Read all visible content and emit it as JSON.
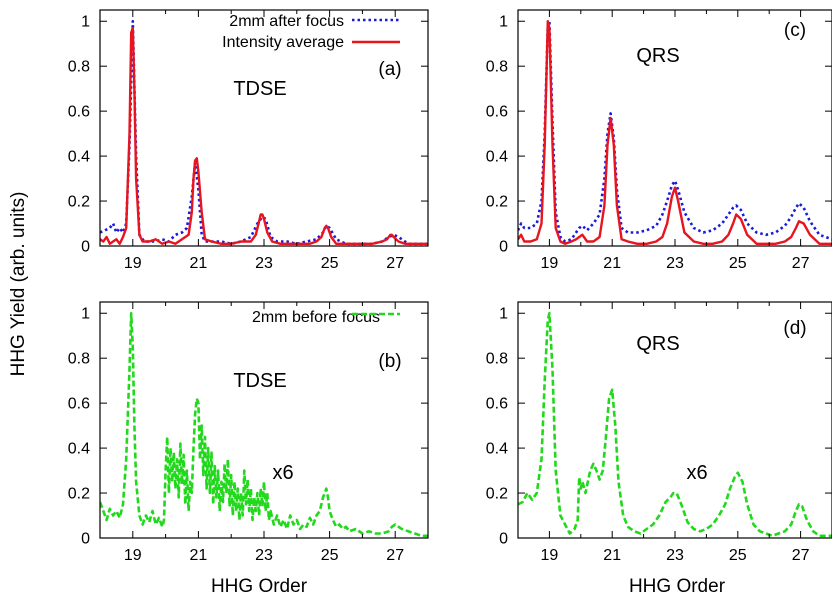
{
  "ylabel": "HHG Yield (arb. units)",
  "xlabel": "HHG Order",
  "colors": {
    "blue": "#1a1adb",
    "red": "#e8141e",
    "green": "#22d81c",
    "axis": "#000000"
  },
  "chart_data": [
    {
      "id": "a",
      "type": "line",
      "panel_label": "(a)",
      "method_label": "TDSE",
      "scale_note": "",
      "xlim": [
        18,
        28
      ],
      "ylim": [
        0,
        1.05
      ],
      "xticks": [
        19,
        21,
        23,
        25,
        27
      ],
      "yticks": [
        0,
        0.2,
        0.4,
        0.6,
        0.8,
        1
      ],
      "ytick_labels": [
        "0",
        "0.2",
        "0.4",
        "0.6",
        "0.8",
        "1"
      ],
      "series": [
        {
          "name": "2mm after focus",
          "style": "dotted",
          "color": "#1a1adb",
          "x": [
            18.0,
            18.15,
            18.3,
            18.4,
            18.5,
            18.6,
            18.7,
            18.8,
            18.9,
            19.0,
            19.1,
            19.2,
            19.35,
            19.5,
            19.7,
            19.9,
            20.1,
            20.3,
            20.5,
            20.65,
            20.8,
            20.9,
            21.0,
            21.1,
            21.2,
            21.4,
            21.7,
            22.0,
            22.3,
            22.6,
            22.8,
            22.95,
            23.05,
            23.2,
            23.4,
            23.7,
            24.0,
            24.3,
            24.6,
            24.8,
            24.9,
            25.0,
            25.2,
            25.5,
            25.9,
            26.3,
            26.6,
            26.8,
            26.95,
            27.1,
            27.4,
            27.7,
            28.0
          ],
          "y": [
            0.06,
            0.07,
            0.08,
            0.1,
            0.06,
            0.08,
            0.06,
            0.1,
            0.45,
            1.0,
            0.4,
            0.05,
            0.02,
            0.02,
            0.02,
            0.03,
            0.02,
            0.05,
            0.06,
            0.08,
            0.22,
            0.37,
            0.25,
            0.05,
            0.02,
            0.02,
            0.02,
            0.01,
            0.02,
            0.04,
            0.1,
            0.13,
            0.12,
            0.04,
            0.02,
            0.02,
            0.01,
            0.02,
            0.03,
            0.06,
            0.09,
            0.08,
            0.03,
            0.01,
            0.01,
            0.01,
            0.02,
            0.04,
            0.05,
            0.04,
            0.01,
            0.01,
            0.01
          ]
        },
        {
          "name": "Intensity average",
          "style": "solid",
          "color": "#e8141e",
          "x": [
            18.0,
            18.1,
            18.2,
            18.3,
            18.4,
            18.5,
            18.6,
            18.7,
            18.8,
            18.9,
            18.95,
            19.0,
            19.05,
            19.1,
            19.2,
            19.3,
            19.5,
            19.7,
            19.9,
            20.1,
            20.3,
            20.5,
            20.7,
            20.8,
            20.85,
            20.9,
            20.95,
            21.0,
            21.1,
            21.2,
            21.4,
            21.7,
            22.0,
            22.3,
            22.6,
            22.75,
            22.85,
            22.9,
            22.95,
            23.0,
            23.1,
            23.25,
            23.5,
            23.8,
            24.1,
            24.4,
            24.6,
            24.75,
            24.85,
            24.9,
            24.95,
            25.05,
            25.2,
            25.5,
            25.9,
            26.3,
            26.6,
            26.75,
            26.85,
            26.9,
            26.95,
            27.1,
            27.3,
            27.6,
            28.0
          ],
          "y": [
            0.03,
            0.02,
            0.04,
            0.01,
            0.02,
            0.03,
            0.01,
            0.04,
            0.08,
            0.5,
            0.95,
            0.97,
            0.7,
            0.3,
            0.05,
            0.02,
            0.02,
            0.03,
            0.01,
            0.02,
            0.01,
            0.03,
            0.05,
            0.15,
            0.3,
            0.38,
            0.39,
            0.33,
            0.15,
            0.03,
            0.02,
            0.01,
            0.01,
            0.02,
            0.02,
            0.05,
            0.11,
            0.14,
            0.14,
            0.12,
            0.06,
            0.02,
            0.01,
            0.01,
            0.01,
            0.01,
            0.02,
            0.04,
            0.08,
            0.09,
            0.08,
            0.04,
            0.01,
            0.01,
            0.01,
            0.01,
            0.02,
            0.03,
            0.05,
            0.05,
            0.04,
            0.02,
            0.01,
            0.01,
            0.01
          ]
        }
      ]
    },
    {
      "id": "b",
      "type": "line",
      "panel_label": "(b)",
      "method_label": "TDSE",
      "scale_note": "x6",
      "xlim": [
        18,
        28
      ],
      "ylim": [
        0,
        1.05
      ],
      "xticks": [
        19,
        21,
        23,
        25,
        27
      ],
      "yticks": [
        0,
        0.2,
        0.4,
        0.6,
        0.8,
        1
      ],
      "ytick_labels": [
        "0",
        "0.2",
        "0.4",
        "0.6",
        "0.8",
        "1"
      ],
      "series": [
        {
          "name": "2mm before focus",
          "style": "dashed",
          "color": "#22d81c",
          "x": [
            18.0,
            18.1,
            18.2,
            18.3,
            18.4,
            18.5,
            18.6,
            18.7,
            18.8,
            18.9,
            18.95,
            19.0,
            19.05,
            19.1,
            19.2,
            19.3,
            19.4,
            19.5,
            19.6,
            19.7,
            19.8,
            19.9,
            19.95,
            20.0,
            20.05,
            20.1,
            20.15,
            20.2,
            20.25,
            20.3,
            20.35,
            20.4,
            20.45,
            20.5,
            20.55,
            20.6,
            20.65,
            20.7,
            20.75,
            20.8,
            20.85,
            20.9,
            20.95,
            21.0,
            21.05,
            21.1,
            21.15,
            21.2,
            21.25,
            21.3,
            21.35,
            21.4,
            21.45,
            21.5,
            21.55,
            21.6,
            21.65,
            21.7,
            21.75,
            21.8,
            21.85,
            21.9,
            21.95,
            22.0,
            22.05,
            22.1,
            22.15,
            22.2,
            22.25,
            22.3,
            22.35,
            22.4,
            22.45,
            22.5,
            22.55,
            22.6,
            22.65,
            22.7,
            22.75,
            22.8,
            22.85,
            22.9,
            22.95,
            23.0,
            23.05,
            23.1,
            23.15,
            23.2,
            23.3,
            23.4,
            23.5,
            23.6,
            23.7,
            23.8,
            23.9,
            24.0,
            24.1,
            24.2,
            24.3,
            24.4,
            24.5,
            24.6,
            24.7,
            24.8,
            24.85,
            24.9,
            24.95,
            25.0,
            25.1,
            25.2,
            25.3,
            25.4,
            25.5,
            25.6,
            25.8,
            26.0,
            26.2,
            26.4,
            26.6,
            26.8,
            26.9,
            27.0,
            27.2,
            27.4,
            27.6,
            27.8,
            28.0
          ],
          "y": [
            0.16,
            0.12,
            0.08,
            0.13,
            0.1,
            0.12,
            0.09,
            0.15,
            0.35,
            0.75,
            1.0,
            0.85,
            0.5,
            0.25,
            0.1,
            0.06,
            0.1,
            0.07,
            0.12,
            0.06,
            0.09,
            0.05,
            0.08,
            0.3,
            0.45,
            0.2,
            0.4,
            0.25,
            0.38,
            0.22,
            0.35,
            0.18,
            0.42,
            0.24,
            0.37,
            0.15,
            0.3,
            0.12,
            0.25,
            0.2,
            0.4,
            0.55,
            0.62,
            0.6,
            0.35,
            0.5,
            0.28,
            0.45,
            0.22,
            0.4,
            0.2,
            0.38,
            0.15,
            0.32,
            0.18,
            0.3,
            0.12,
            0.25,
            0.16,
            0.33,
            0.2,
            0.35,
            0.14,
            0.28,
            0.1,
            0.25,
            0.12,
            0.22,
            0.08,
            0.2,
            0.1,
            0.3,
            0.15,
            0.26,
            0.12,
            0.22,
            0.08,
            0.18,
            0.12,
            0.2,
            0.1,
            0.22,
            0.14,
            0.25,
            0.12,
            0.2,
            0.08,
            0.12,
            0.06,
            0.1,
            0.05,
            0.08,
            0.04,
            0.1,
            0.06,
            0.08,
            0.04,
            0.06,
            0.05,
            0.09,
            0.06,
            0.1,
            0.12,
            0.18,
            0.2,
            0.22,
            0.18,
            0.12,
            0.08,
            0.05,
            0.06,
            0.04,
            0.05,
            0.03,
            0.04,
            0.02,
            0.03,
            0.02,
            0.02,
            0.03,
            0.05,
            0.06,
            0.04,
            0.03,
            0.02,
            0.01,
            0.01
          ]
        }
      ]
    },
    {
      "id": "c",
      "type": "line",
      "panel_label": "(c)",
      "method_label": "QRS",
      "scale_note": "",
      "xlim": [
        18,
        28
      ],
      "ylim": [
        0,
        1.05
      ],
      "xticks": [
        19,
        21,
        23,
        25,
        27
      ],
      "yticks": [
        0,
        0.2,
        0.4,
        0.6,
        0.8,
        1
      ],
      "ytick_labels": [
        "0",
        "0.2",
        "0.4",
        "0.6",
        "0.8",
        "1"
      ],
      "series": [
        {
          "name": "",
          "style": "dotted",
          "color": "#1a1adb",
          "x": [
            18.0,
            18.1,
            18.2,
            18.4,
            18.6,
            18.75,
            18.85,
            18.95,
            19.0,
            19.1,
            19.2,
            19.35,
            19.5,
            19.7,
            19.85,
            19.95,
            20.05,
            20.2,
            20.4,
            20.6,
            20.75,
            20.85,
            20.95,
            21.05,
            21.15,
            21.3,
            21.5,
            21.8,
            22.1,
            22.4,
            22.6,
            22.75,
            22.9,
            23.0,
            23.1,
            23.3,
            23.6,
            23.9,
            24.2,
            24.5,
            24.7,
            24.85,
            24.95,
            25.1,
            25.3,
            25.6,
            25.9,
            26.2,
            26.5,
            26.7,
            26.85,
            26.95,
            27.1,
            27.3,
            27.6,
            28.0
          ],
          "y": [
            0.07,
            0.1,
            0.08,
            0.08,
            0.1,
            0.2,
            0.5,
            0.98,
            1.0,
            0.55,
            0.15,
            0.04,
            0.02,
            0.03,
            0.06,
            0.08,
            0.09,
            0.07,
            0.1,
            0.14,
            0.3,
            0.5,
            0.59,
            0.48,
            0.25,
            0.08,
            0.06,
            0.06,
            0.07,
            0.09,
            0.14,
            0.2,
            0.27,
            0.29,
            0.25,
            0.15,
            0.08,
            0.06,
            0.07,
            0.1,
            0.14,
            0.17,
            0.18,
            0.16,
            0.1,
            0.06,
            0.05,
            0.06,
            0.09,
            0.13,
            0.17,
            0.19,
            0.17,
            0.11,
            0.05,
            0.03
          ]
        },
        {
          "name": "",
          "style": "solid",
          "color": "#e8141e",
          "x": [
            18.0,
            18.1,
            18.2,
            18.4,
            18.6,
            18.75,
            18.85,
            18.95,
            19.0,
            19.1,
            19.2,
            19.35,
            19.5,
            19.7,
            19.85,
            19.95,
            20.05,
            20.2,
            20.4,
            20.6,
            20.75,
            20.85,
            20.95,
            21.05,
            21.15,
            21.3,
            21.5,
            21.8,
            22.1,
            22.4,
            22.6,
            22.75,
            22.9,
            23.0,
            23.1,
            23.3,
            23.6,
            23.9,
            24.2,
            24.5,
            24.7,
            24.85,
            24.95,
            25.1,
            25.3,
            25.6,
            25.9,
            26.2,
            26.5,
            26.7,
            26.85,
            26.95,
            27.1,
            27.3,
            27.6,
            28.0
          ],
          "y": [
            0.03,
            0.05,
            0.02,
            0.02,
            0.03,
            0.1,
            0.45,
            1.0,
            0.97,
            0.45,
            0.08,
            0.02,
            0.01,
            0.02,
            0.03,
            0.04,
            0.05,
            0.02,
            0.02,
            0.04,
            0.18,
            0.45,
            0.57,
            0.45,
            0.18,
            0.03,
            0.02,
            0.01,
            0.01,
            0.02,
            0.04,
            0.1,
            0.22,
            0.26,
            0.2,
            0.06,
            0.02,
            0.01,
            0.01,
            0.02,
            0.05,
            0.1,
            0.14,
            0.12,
            0.05,
            0.01,
            0.01,
            0.01,
            0.02,
            0.04,
            0.08,
            0.11,
            0.1,
            0.05,
            0.01,
            0.01
          ]
        }
      ]
    },
    {
      "id": "d",
      "type": "line",
      "panel_label": "(d)",
      "method_label": "QRS",
      "scale_note": "x6",
      "xlim": [
        18,
        28
      ],
      "ylim": [
        0,
        1.05
      ],
      "xticks": [
        19,
        21,
        23,
        25,
        27
      ],
      "yticks": [
        0,
        0.2,
        0.4,
        0.6,
        0.8,
        1
      ],
      "ytick_labels": [
        "0",
        "0.2",
        "0.4",
        "0.6",
        "0.8",
        "1"
      ],
      "series": [
        {
          "name": "",
          "style": "dashed",
          "color": "#22d81c",
          "x": [
            18.0,
            18.15,
            18.3,
            18.45,
            18.6,
            18.75,
            18.85,
            18.95,
            19.0,
            19.1,
            19.2,
            19.35,
            19.5,
            19.65,
            19.8,
            19.9,
            19.95,
            20.0,
            20.05,
            20.15,
            20.3,
            20.4,
            20.5,
            20.6,
            20.7,
            20.8,
            20.9,
            21.0,
            21.1,
            21.2,
            21.35,
            21.5,
            21.7,
            21.9,
            22.1,
            22.3,
            22.5,
            22.7,
            22.85,
            22.95,
            23.05,
            23.2,
            23.4,
            23.6,
            23.8,
            24.0,
            24.2,
            24.4,
            24.6,
            24.75,
            24.9,
            25.0,
            25.15,
            25.3,
            25.5,
            25.7,
            25.9,
            26.1,
            26.3,
            26.5,
            26.7,
            26.85,
            26.95,
            27.05,
            27.2,
            27.4,
            27.6,
            27.8,
            28.0
          ],
          "y": [
            0.15,
            0.16,
            0.2,
            0.17,
            0.2,
            0.35,
            0.7,
            0.97,
            1.0,
            0.75,
            0.3,
            0.1,
            0.06,
            0.02,
            0.04,
            0.08,
            0.27,
            0.22,
            0.25,
            0.2,
            0.3,
            0.33,
            0.3,
            0.26,
            0.3,
            0.45,
            0.62,
            0.66,
            0.5,
            0.25,
            0.1,
            0.05,
            0.03,
            0.02,
            0.04,
            0.06,
            0.1,
            0.16,
            0.18,
            0.2,
            0.2,
            0.15,
            0.07,
            0.04,
            0.03,
            0.04,
            0.06,
            0.1,
            0.15,
            0.22,
            0.27,
            0.29,
            0.25,
            0.15,
            0.06,
            0.03,
            0.02,
            0.01,
            0.02,
            0.03,
            0.06,
            0.12,
            0.15,
            0.14,
            0.08,
            0.03,
            0.01,
            0.01,
            0.01
          ]
        }
      ]
    }
  ]
}
